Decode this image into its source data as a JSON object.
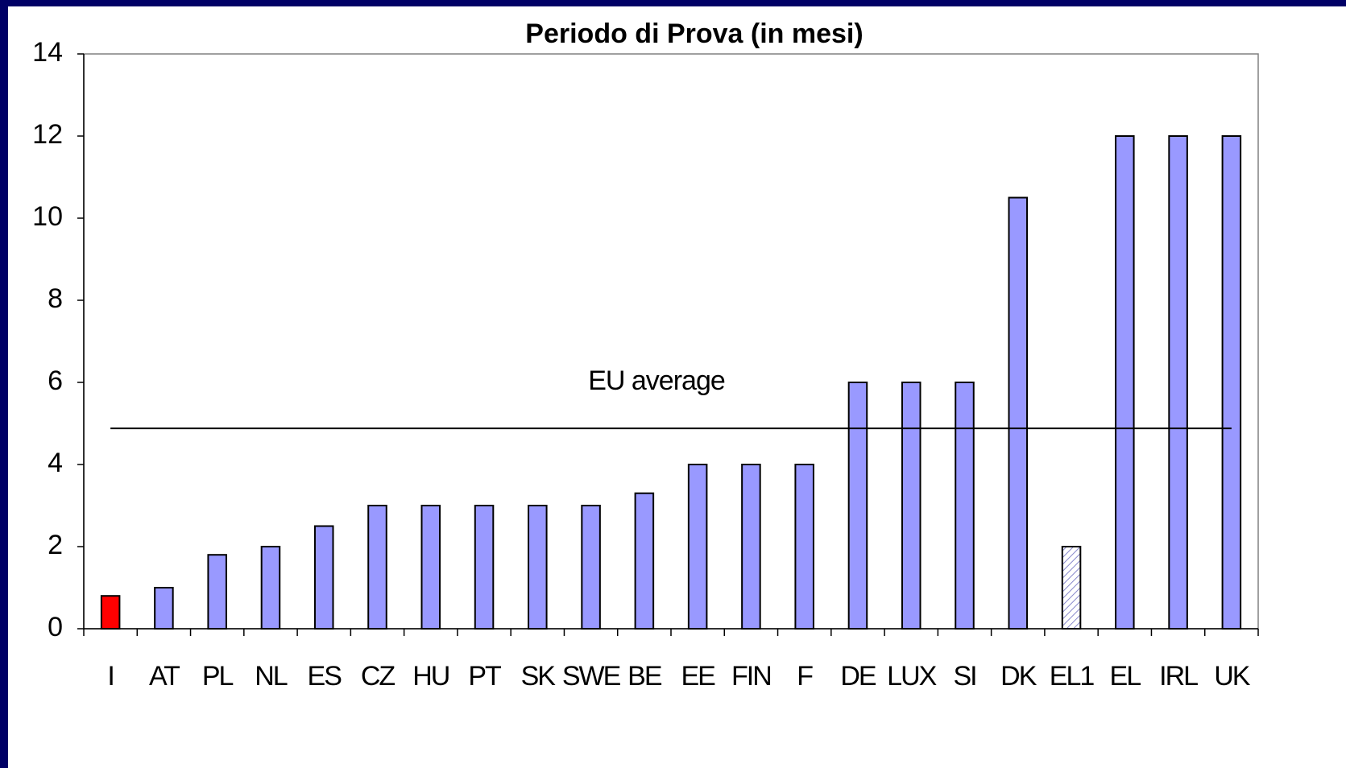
{
  "chart_data": {
    "type": "bar",
    "title": "Periodo di Prova (in mesi)",
    "categories": [
      "I",
      "AT",
      "PL",
      "NL",
      "ES",
      "CZ",
      "HU",
      "PT",
      "SK",
      "SWE",
      "BE",
      "EE",
      "FIN",
      "F",
      "DE",
      "LUX",
      "SI",
      "DK",
      "EL1",
      "EL",
      "IRL",
      "UK"
    ],
    "values": [
      0.8,
      1,
      1.8,
      2,
      2.5,
      3,
      3,
      3,
      3,
      3,
      3.3,
      4,
      4,
      4,
      6,
      6,
      6,
      10.5,
      2,
      12,
      12,
      12
    ],
    "colors": [
      "#ff0000",
      "#9999ff",
      "#9999ff",
      "#9999ff",
      "#9999ff",
      "#9999ff",
      "#9999ff",
      "#9999ff",
      "#9999ff",
      "#9999ff",
      "#9999ff",
      "#9999ff",
      "#9999ff",
      "#9999ff",
      "#9999ff",
      "#9999ff",
      "#9999ff",
      "#9999ff",
      "#ffffff",
      "#9999ff",
      "#9999ff",
      "#9999ff"
    ],
    "hatched_categories": [
      "EL1"
    ],
    "reference_line": {
      "label": "EU average",
      "value": 4.88
    },
    "ylim": [
      0,
      14
    ],
    "yticks": [
      0,
      2,
      4,
      6,
      8,
      10,
      12,
      14
    ],
    "grid": false
  }
}
